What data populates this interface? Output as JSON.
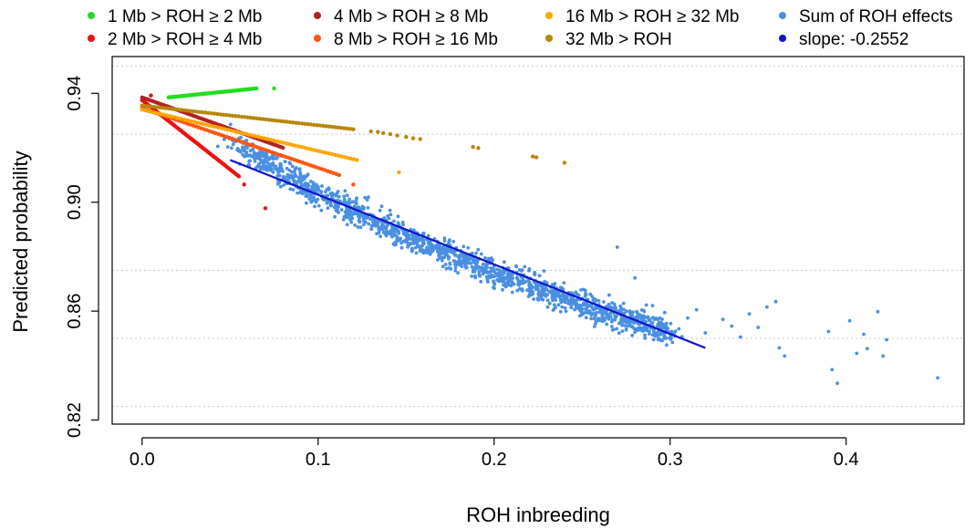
{
  "chart_data": {
    "type": "scatter",
    "title": "",
    "xlabel": "ROH inbreeding",
    "ylabel": "Predicted probability",
    "xlim": [
      -0.017,
      0.467
    ],
    "ylim": [
      0.8185,
      0.9535
    ],
    "x_ticks": [
      0.0,
      0.1,
      0.2,
      0.3,
      0.4
    ],
    "x_tick_labels": [
      "0.0",
      "0.1",
      "0.2",
      "0.3",
      "0.4"
    ],
    "y_ticks": [
      0.82,
      0.86,
      0.9,
      0.94
    ],
    "y_tick_labels": [
      "0.82",
      "0.86",
      "0.90",
      "0.94"
    ],
    "y_gridlines": [
      0.825,
      0.85,
      0.875,
      0.925,
      0.95
    ],
    "grid": "horizontal dotted",
    "legend_position": "top",
    "series": [
      {
        "name": "1 Mb > ROH ≥ 2 Mb",
        "color": "#22dd22",
        "kind": "points",
        "segments": [
          [
            0.015,
            0.9385,
            0.065,
            0.9418
          ]
        ],
        "extra_points": [
          [
            0.075,
            0.9418
          ]
        ]
      },
      {
        "name": "2 Mb > ROH ≥ 4 Mb",
        "color": "#ee1111",
        "kind": "points",
        "segments": [
          [
            0.0,
            0.9375,
            0.055,
            0.9095
          ]
        ],
        "extra_points": [
          [
            0.058,
            0.9065
          ],
          [
            0.07,
            0.8978
          ]
        ]
      },
      {
        "name": "4 Mb > ROH ≥ 8 Mb",
        "color": "#b22222",
        "kind": "points",
        "segments": [
          [
            0.0,
            0.9385,
            0.08,
            0.92
          ]
        ],
        "extra_points": [
          [
            0.005,
            0.9392
          ]
        ]
      },
      {
        "name": "8 Mb > ROH ≥ 16 Mb",
        "color": "#ff5511",
        "kind": "points",
        "segments": [
          [
            0.0,
            0.9345,
            0.112,
            0.91
          ]
        ],
        "extra_points": [
          [
            0.12,
            0.9065
          ]
        ]
      },
      {
        "name": "16 Mb > ROH ≥ 32 Mb",
        "color": "#ffa500",
        "kind": "points",
        "segments": [
          [
            0.0,
            0.934,
            0.122,
            0.9155
          ]
        ],
        "extra_points": [
          [
            0.146,
            0.911
          ]
        ]
      },
      {
        "name": "32 Mb > ROH",
        "color": "#b8860b",
        "kind": "points",
        "segments": [
          [
            0.0,
            0.9355,
            0.12,
            0.9268
          ]
        ],
        "extra_points": [
          [
            0.13,
            0.926
          ],
          [
            0.134,
            0.9258
          ],
          [
            0.137,
            0.9254
          ],
          [
            0.141,
            0.925
          ],
          [
            0.145,
            0.9245
          ],
          [
            0.15,
            0.924
          ],
          [
            0.154,
            0.9235
          ],
          [
            0.158,
            0.9232
          ],
          [
            0.188,
            0.9203
          ],
          [
            0.191,
            0.9199
          ],
          [
            0.222,
            0.9168
          ],
          [
            0.224,
            0.9165
          ],
          [
            0.24,
            0.9145
          ]
        ]
      },
      {
        "name": "Sum of ROH effects",
        "color": "#4a90e2",
        "kind": "cloud",
        "trend": [
          [
            0.05,
            0.9225
          ],
          [
            0.1,
            0.9035
          ],
          [
            0.15,
            0.8875
          ],
          [
            0.2,
            0.8745
          ],
          [
            0.25,
            0.8625
          ],
          [
            0.3,
            0.852
          ]
        ],
        "spread": 0.0042,
        "n": 1600,
        "outliers": [
          [
            0.043,
            0.9205
          ],
          [
            0.052,
            0.9225
          ],
          [
            0.27,
            0.8835
          ],
          [
            0.28,
            0.8722
          ],
          [
            0.29,
            0.862
          ],
          [
            0.305,
            0.8535
          ],
          [
            0.31,
            0.8575
          ],
          [
            0.315,
            0.8605
          ],
          [
            0.32,
            0.852
          ],
          [
            0.33,
            0.857
          ],
          [
            0.335,
            0.8545
          ],
          [
            0.34,
            0.8505
          ],
          [
            0.345,
            0.859
          ],
          [
            0.35,
            0.854
          ],
          [
            0.355,
            0.8615
          ],
          [
            0.36,
            0.8635
          ],
          [
            0.362,
            0.8465
          ],
          [
            0.365,
            0.8435
          ],
          [
            0.39,
            0.8525
          ],
          [
            0.392,
            0.8385
          ],
          [
            0.395,
            0.8335
          ],
          [
            0.402,
            0.8565
          ],
          [
            0.406,
            0.8445
          ],
          [
            0.41,
            0.8515
          ],
          [
            0.412,
            0.8462
          ],
          [
            0.418,
            0.8598
          ],
          [
            0.421,
            0.8435
          ],
          [
            0.423,
            0.8495
          ],
          [
            0.452,
            0.8355
          ]
        ]
      },
      {
        "name": "slope: -0.2552",
        "color": "#1111cc",
        "kind": "line",
        "line": [
          [
            0.05,
            0.9155
          ],
          [
            0.32,
            0.8465
          ]
        ]
      }
    ]
  }
}
